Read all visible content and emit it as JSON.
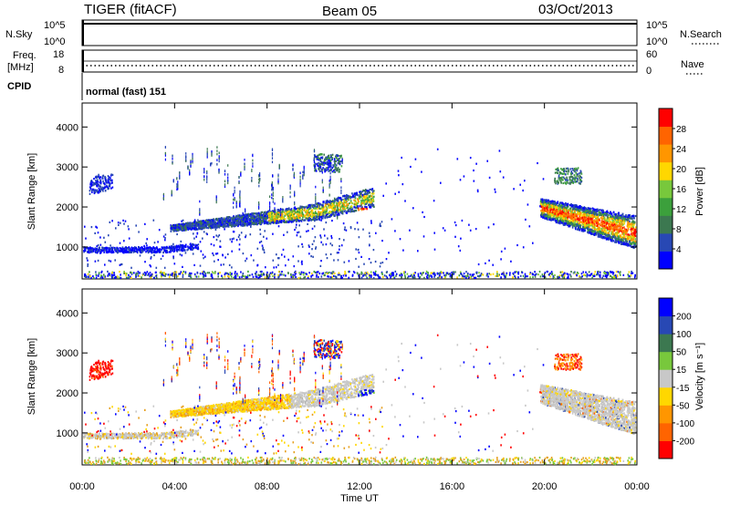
{
  "header": {
    "station": "TIGER (fitACF)",
    "beam": "Beam 05",
    "date": "03/Oct/2013"
  },
  "strips": {
    "nsky_label": "N.Sky",
    "nsky_ticks": [
      "10^5",
      "10^0"
    ],
    "nsearch_label": "N.Search",
    "nsearch_ticks": [
      "10^5",
      "10^0"
    ],
    "freq_label_1": "Freq.",
    "freq_label_2": "[MHz]",
    "freq_ticks": [
      "18",
      "8"
    ],
    "nave_label": "Nave",
    "nave_ticks": [
      "60",
      "0"
    ],
    "cpid_label": "CPID",
    "cpid_value": "normal (fast) 151"
  },
  "colors": {
    "power": [
      "#0000ff",
      "#2848b4",
      "#3c7850",
      "#3ca03c",
      "#78c83c",
      "#ffd700",
      "#ff9600",
      "#ff6400",
      "#ff0000"
    ],
    "velocity": [
      "#ff0000",
      "#ff6400",
      "#ff9600",
      "#ffd700",
      "#c8c8c8",
      "#78c83c",
      "#3c7850",
      "#2848b4",
      "#0000ff"
    ],
    "ground": [
      "#c8c8c8",
      "#e6a020",
      "#78c83c"
    ]
  },
  "chart_data": [
    {
      "type": "heatmap",
      "name": "power",
      "ylabel": "Slant Range [km]",
      "ylim": [
        200,
        4600
      ],
      "yticks": [
        "1000",
        "2000",
        "3000",
        "4000"
      ],
      "xlim": [
        0,
        24
      ],
      "xticks": [
        "00:00",
        "04:00",
        "08:00",
        "12:00",
        "16:00",
        "20:00",
        "00:00"
      ],
      "colorbar": {
        "label": "Power [dB]",
        "range": [
          0,
          32
        ],
        "ticks": [
          "4",
          "8",
          "12",
          "16",
          "20",
          "24",
          "28"
        ]
      },
      "features": [
        {
          "band": "ground-scatter",
          "t": [
            0,
            24
          ],
          "range_km": [
            250,
            400
          ]
        },
        {
          "band": "low-echo",
          "t": [
            0,
            5
          ],
          "range_km": [
            850,
            1000
          ],
          "power_db": [
            4,
            6
          ]
        },
        {
          "band": "main-echo",
          "t": [
            4,
            12.5
          ],
          "range_km": [
            1450,
            2350
          ],
          "power_db": [
            6,
            18
          ]
        },
        {
          "band": "evening-echo",
          "t": [
            19.8,
            24
          ],
          "range_km": [
            1100,
            2300
          ],
          "power_db": [
            14,
            30
          ]
        }
      ]
    },
    {
      "type": "heatmap",
      "name": "velocity",
      "ylabel": "Slant Range [km]",
      "ylim": [
        200,
        4600
      ],
      "yticks": [
        "1000",
        "2000",
        "3000",
        "4000"
      ],
      "xlim": [
        0,
        24
      ],
      "xticks": [
        "00:00",
        "04:00",
        "08:00",
        "12:00",
        "16:00",
        "20:00",
        "00:00"
      ],
      "xlabel": "Time UT",
      "colorbar": {
        "label": "Velocity [m s⁻¹]",
        "range": [
          -250,
          250
        ],
        "ticks": [
          "200",
          "100",
          "50",
          "15",
          "-15",
          "-50",
          "-100",
          "-200"
        ]
      },
      "features": [
        {
          "band": "ground-scatter",
          "t": [
            0,
            24
          ],
          "range_km": [
            250,
            400
          ]
        },
        {
          "band": "early-red",
          "t": [
            0.5,
            1.3
          ],
          "range_km": [
            2400,
            2800
          ],
          "velocity": -200
        },
        {
          "band": "grey-main",
          "t": [
            9,
            12.5
          ],
          "range_km": [
            1600,
            2300
          ],
          "velocity": 0
        },
        {
          "band": "blue-patch",
          "t": [
            12,
            12.8
          ],
          "range_km": [
            1700,
            2100
          ],
          "velocity": 200
        },
        {
          "band": "grey-evening",
          "t": [
            19.8,
            24
          ],
          "range_km": [
            1000,
            2300
          ],
          "velocity": 0
        }
      ]
    }
  ]
}
